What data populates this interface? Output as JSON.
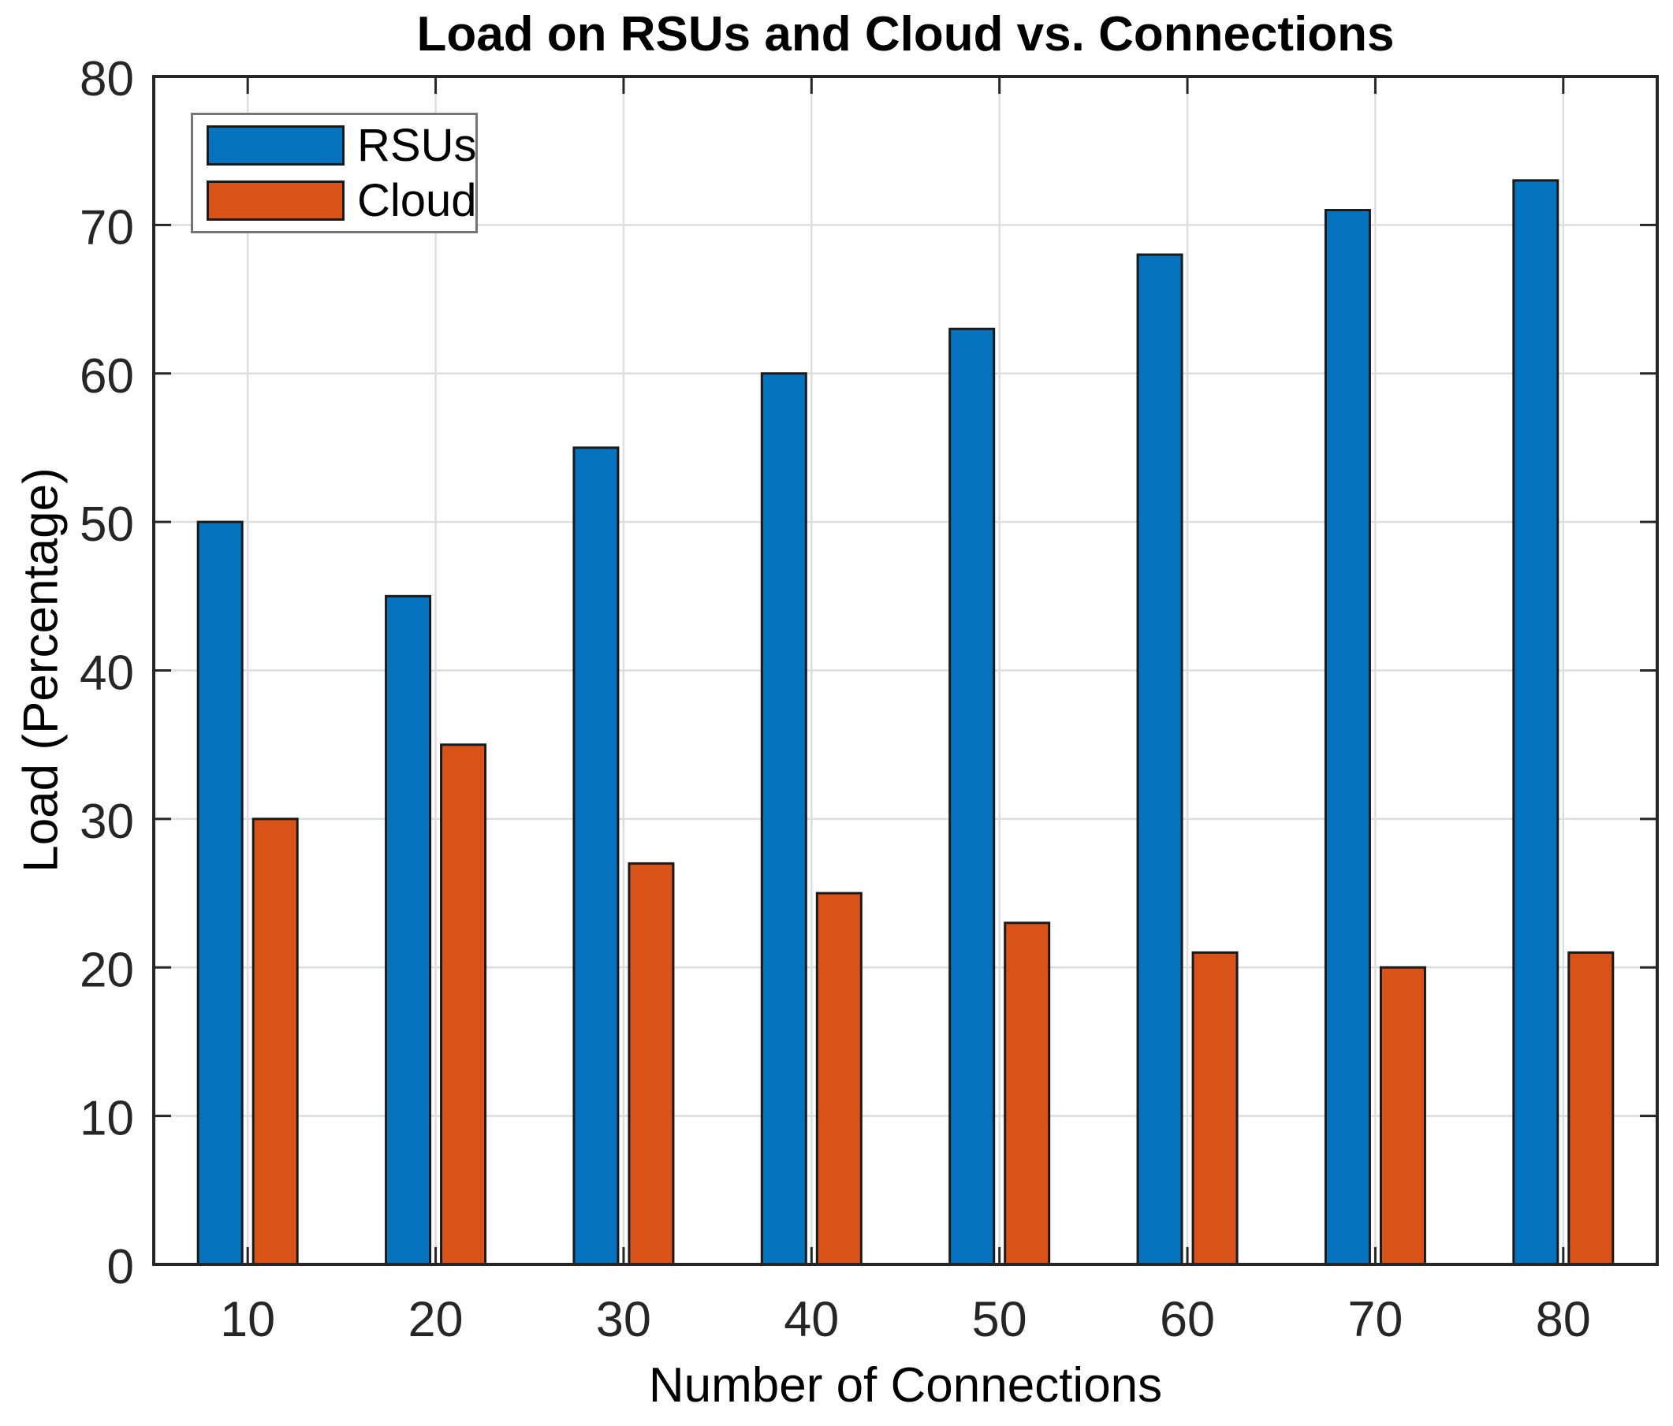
{
  "figure": {
    "background": "#ffffff"
  },
  "chart_data": {
    "type": "bar",
    "title": "Load on RSUs and Cloud vs. Connections",
    "xlabel": "Number of Connections",
    "ylabel": "Load (Percentage)",
    "categories": [
      "10",
      "20",
      "30",
      "40",
      "50",
      "60",
      "70",
      "80"
    ],
    "yticks": [
      0,
      10,
      20,
      30,
      40,
      50,
      60,
      70,
      80
    ],
    "ylim": [
      0,
      80
    ],
    "grid": true,
    "legend_position": "top-left",
    "series": [
      {
        "name": "RSUs",
        "color": "#0673BE",
        "values": [
          50,
          45,
          55,
          60,
          63,
          68,
          71,
          73
        ]
      },
      {
        "name": "Cloud",
        "color": "#D95319",
        "values": [
          30,
          35,
          27,
          25,
          23,
          21,
          20,
          21
        ]
      }
    ],
    "bar_edge_color": "#1a1a1a",
    "axis_color": "#262626",
    "grid_color": "#dedede",
    "tick_label_color": "#262626",
    "legend_border_color": "#757575"
  }
}
